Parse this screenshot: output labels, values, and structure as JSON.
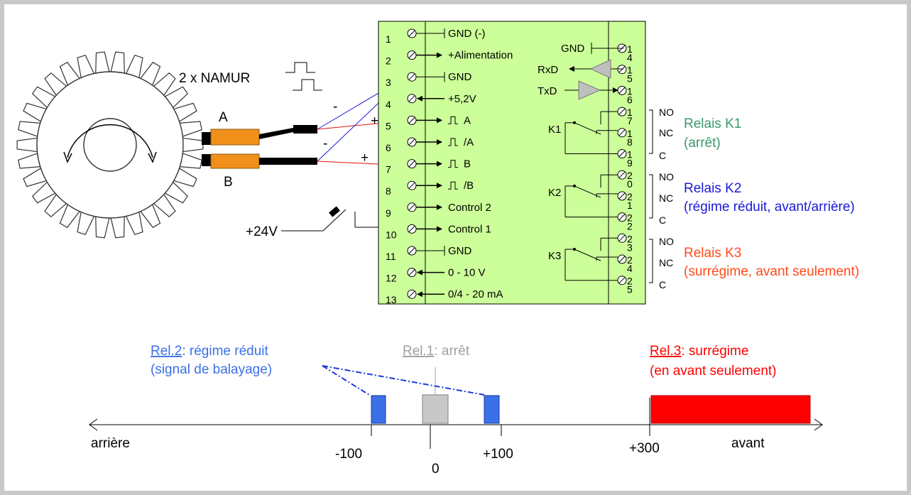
{
  "sensors": {
    "namur_label": "2 x NAMUR",
    "sensor_a": "A",
    "sensor_b": "B",
    "minus_a": "-",
    "plus_a": "+",
    "minus_b": "-",
    "plus_b": "+",
    "supply_24v": "+24V"
  },
  "left_terminal": {
    "pins": [
      {
        "num": "1",
        "label": "GND (-)"
      },
      {
        "num": "2",
        "label": "+Alimentation"
      },
      {
        "num": "3",
        "label": "GND"
      },
      {
        "num": "4",
        "label": "+5,2V"
      },
      {
        "num": "5",
        "label": "A"
      },
      {
        "num": "6",
        "label": "/A"
      },
      {
        "num": "7",
        "label": "B"
      },
      {
        "num": "8",
        "label": "/B"
      },
      {
        "num": "9",
        "label": "Control 2"
      },
      {
        "num": "10",
        "label": "Control 1"
      },
      {
        "num": "11",
        "label": "GND"
      },
      {
        "num": "12",
        "label": "0 - 10 V"
      },
      {
        "num": "13",
        "label": "0/4 - 20 mA"
      }
    ]
  },
  "right_terminal": {
    "pins": [
      {
        "num": "14",
        "label": "GND"
      },
      {
        "num": "15",
        "label": "RxD"
      },
      {
        "num": "16",
        "label": "TxD"
      },
      {
        "num": "17",
        "label": ""
      },
      {
        "num": "18",
        "label": ""
      },
      {
        "num": "19",
        "label": ""
      },
      {
        "num": "20",
        "label": ""
      },
      {
        "num": "21",
        "label": ""
      },
      {
        "num": "22",
        "label": ""
      },
      {
        "num": "23",
        "label": ""
      },
      {
        "num": "24",
        "label": ""
      },
      {
        "num": "25",
        "label": ""
      }
    ]
  },
  "relays": [
    {
      "coil": "K1",
      "no": "NO",
      "nc": "NC",
      "c": "C",
      "title": "Relais K1",
      "desc": "(arrêt)",
      "color": "#3a9a6a"
    },
    {
      "coil": "K2",
      "no": "NO",
      "nc": "NC",
      "c": "C",
      "title": "Relais K2",
      "desc": "(régime réduit, avant/arrière)",
      "color": "#1a1ad8"
    },
    {
      "coil": "K3",
      "no": "NO",
      "nc": "NC",
      "c": "C",
      "title": "Relais K3",
      "desc": "(surrégime, avant seulement)",
      "color": "#ff4a1a"
    }
  ],
  "axis": {
    "left_label": "arrière",
    "right_label": "avant",
    "ticks": [
      "-100",
      "0",
      "+100",
      "+300"
    ]
  },
  "legend": {
    "rel2_link": "Rel.2",
    "rel2_text": ": régime réduit",
    "rel2_sub": "(signal de balayage)",
    "rel1_link": "Rel.1",
    "rel1_text": ": arrêt",
    "rel3_link": "Rel.3",
    "rel3_text": ": surrégime",
    "rel3_sub": "(en avant seulement)"
  },
  "colors": {
    "board_fill": "#ccff99",
    "rel2_blue": "#3a70e8",
    "rel1_gray": "#a0a0a0",
    "rel3_red": "#ff0000",
    "sensor_orange": "#f0901a"
  }
}
